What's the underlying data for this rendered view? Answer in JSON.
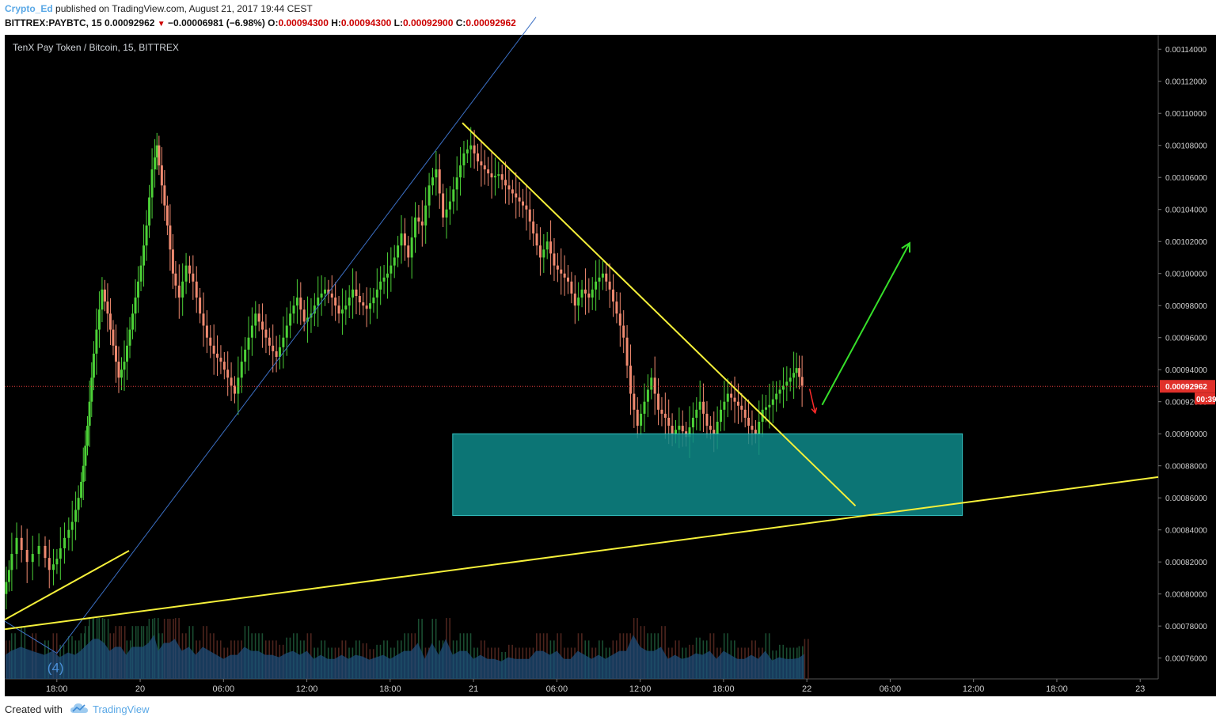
{
  "header": {
    "author": "Crypto_Ed",
    "published": " published on TradingView.com, August 21, 2017 19:44 CEST",
    "symbol": "BITTREX:PAYBTC, 15",
    "last": "0.00092962",
    "change": "−0.00006981 (−6.98%)",
    "open_label": "O:",
    "open": "0.00094300",
    "high_label": "H:",
    "high": "0.00094300",
    "low_label": "L:",
    "low": "0.00092900",
    "close_label": "C:",
    "close": "0.00092962"
  },
  "chart_title": "TenX Pay Token / Bitcoin, 15, BITTREX",
  "footer": {
    "created_with": "Created with",
    "brand": "TradingView"
  },
  "colors": {
    "background": "#000000",
    "up": "#4cd137",
    "down": "#f08a70",
    "trendline": "#f5f03a",
    "zone_fill": "#0f8a8a",
    "zone_stroke": "#3de0e0",
    "thin_line": "#3b6fc4",
    "green_arrow": "#36e02a",
    "red_arrow": "#ff2a2a",
    "price_line": "#e03c3c",
    "volume": "#1f4e7a"
  },
  "chart_data": {
    "type": "candlestick",
    "title": "TenX Pay Token / Bitcoin, 15, BITTREX",
    "x_axis_labels": [
      "18:00",
      "20",
      "06:00",
      "12:00",
      "18:00",
      "21",
      "06:00",
      "12:00",
      "18:00",
      "22",
      "06:00",
      "12:00",
      "18:00",
      "23"
    ],
    "x_axis_hours": [
      0,
      6,
      12,
      18,
      24,
      30,
      36,
      42,
      48,
      54,
      60,
      66,
      72,
      78
    ],
    "y_ticks": [
      "0.00114000",
      "0.00112000",
      "0.00110000",
      "0.00108000",
      "0.00106000",
      "0.00104000",
      "0.00102000",
      "0.00100000",
      "0.00098000",
      "0.00096000",
      "0.00094000",
      "0.00092000",
      "0.00090000",
      "0.00088000",
      "0.00086000",
      "0.00084000",
      "0.00082000",
      "0.00080000",
      "0.00078000",
      "0.00076000"
    ],
    "y_range": [
      0.000747,
      0.001149
    ],
    "x_range_hours": [
      -3.75,
      79.3
    ],
    "current_price": "0.00092962",
    "countdown": "00:39",
    "wave_label": "(4)",
    "price_path": [
      [
        -3.7,
        0.0008
      ],
      [
        -3.3,
        0.000815
      ],
      [
        -2.6,
        0.000835
      ],
      [
        -1.8,
        0.00082
      ],
      [
        -0.9,
        0.00083
      ],
      [
        -0.3,
        0.000815
      ],
      [
        0.2,
        0.000822
      ],
      [
        0.8,
        0.000835
      ],
      [
        1.3,
        0.000845
      ],
      [
        1.7,
        0.00086
      ],
      [
        2.0,
        0.00088
      ],
      [
        2.3,
        0.000905
      ],
      [
        2.6,
        0.000935
      ],
      [
        3.0,
        0.000965
      ],
      [
        3.4,
        0.00099
      ],
      [
        3.8,
        0.000975
      ],
      [
        4.2,
        0.000955
      ],
      [
        4.6,
        0.000935
      ],
      [
        5.0,
        0.000945
      ],
      [
        5.4,
        0.000965
      ],
      [
        5.8,
        0.000985
      ],
      [
        6.2,
        0.001005
      ],
      [
        6.6,
        0.00103
      ],
      [
        7.0,
        0.001065
      ],
      [
        7.3,
        0.00108
      ],
      [
        7.7,
        0.001055
      ],
      [
        8.1,
        0.00103
      ],
      [
        8.5,
        0.001
      ],
      [
        9.0,
        0.000985
      ],
      [
        9.5,
        0.001005
      ],
      [
        10.0,
        0.000995
      ],
      [
        10.5,
        0.000975
      ],
      [
        11.0,
        0.00096
      ],
      [
        11.5,
        0.00095
      ],
      [
        12.0,
        0.000945
      ],
      [
        12.5,
        0.000935
      ],
      [
        13.0,
        0.000925
      ],
      [
        13.5,
        0.000945
      ],
      [
        14.0,
        0.00096
      ],
      [
        14.5,
        0.000975
      ],
      [
        15.0,
        0.000965
      ],
      [
        15.5,
        0.000955
      ],
      [
        16.0,
        0.000948
      ],
      [
        16.5,
        0.00096
      ],
      [
        17.0,
        0.000975
      ],
      [
        17.5,
        0.000985
      ],
      [
        18.0,
        0.00097
      ],
      [
        18.5,
        0.000975
      ],
      [
        19.0,
        0.000985
      ],
      [
        19.5,
        0.00099
      ],
      [
        20.0,
        0.000985
      ],
      [
        20.5,
        0.000975
      ],
      [
        21.0,
        0.00098
      ],
      [
        21.5,
        0.00099
      ],
      [
        22.0,
        0.000982
      ],
      [
        22.5,
        0.000978
      ],
      [
        23.0,
        0.000985
      ],
      [
        23.5,
        0.000995
      ],
      [
        24.0,
        0.001
      ],
      [
        24.5,
        0.00101
      ],
      [
        25.0,
        0.001025
      ],
      [
        25.5,
        0.00101
      ],
      [
        26.0,
        0.001035
      ],
      [
        26.5,
        0.00103
      ],
      [
        27.0,
        0.001055
      ],
      [
        27.5,
        0.001065
      ],
      [
        28.0,
        0.001035
      ],
      [
        28.5,
        0.001045
      ],
      [
        29.0,
        0.00106
      ],
      [
        29.5,
        0.001075
      ],
      [
        30.0,
        0.00108
      ],
      [
        30.5,
        0.00107
      ],
      [
        31.0,
        0.001065
      ],
      [
        31.5,
        0.00106
      ],
      [
        32.0,
        0.001062
      ],
      [
        32.5,
        0.001055
      ],
      [
        33.0,
        0.00105
      ],
      [
        33.5,
        0.001045
      ],
      [
        34.0,
        0.00104
      ],
      [
        34.5,
        0.001025
      ],
      [
        35.0,
        0.00101
      ],
      [
        35.5,
        0.00102
      ],
      [
        36.0,
        0.001005
      ],
      [
        36.5,
        0.001
      ],
      [
        37.0,
        0.000995
      ],
      [
        37.5,
        0.00098
      ],
      [
        38.0,
        0.00099
      ],
      [
        38.5,
        0.000985
      ],
      [
        39.0,
        0.000995
      ],
      [
        39.5,
        0.001
      ],
      [
        40.0,
        0.00099
      ],
      [
        40.5,
        0.000975
      ],
      [
        41.0,
        0.00096
      ],
      [
        41.5,
        0.000925
      ],
      [
        42.0,
        0.000905
      ],
      [
        42.5,
        0.00092
      ],
      [
        43.0,
        0.000935
      ],
      [
        43.5,
        0.000915
      ],
      [
        44.0,
        0.00091
      ],
      [
        44.5,
        0.0009
      ],
      [
        45.0,
        0.000905
      ],
      [
        45.5,
        0.000898
      ],
      [
        46.0,
        0.00091
      ],
      [
        46.5,
        0.00092
      ],
      [
        47.0,
        0.000905
      ],
      [
        47.5,
        0.0009
      ],
      [
        48.0,
        0.000915
      ],
      [
        48.5,
        0.000925
      ],
      [
        49.0,
        0.00092
      ],
      [
        49.5,
        0.000915
      ],
      [
        50.0,
        0.000905
      ],
      [
        50.5,
        0.0009
      ],
      [
        51.0,
        0.000915
      ],
      [
        51.5,
        0.000918
      ],
      [
        52.0,
        0.000925
      ],
      [
        52.5,
        0.00093
      ],
      [
        53.0,
        0.000935
      ],
      [
        53.4,
        0.000941
      ],
      [
        53.8,
        0.00093
      ]
    ],
    "annotations": {
      "zone": {
        "hours": [
          28.5,
          65.2
        ],
        "price": [
          0.000849,
          0.0009
        ]
      },
      "trendlines": [
        {
          "from": [
            -3.75,
            0.000784
          ],
          "to": [
            5.2,
            0.000827
          ]
        },
        {
          "from": [
            -3.75,
            0.000778
          ],
          "to": [
            79.3,
            0.000873
          ]
        },
        {
          "from": [
            29.2,
            0.001094
          ],
          "to": [
            57.5,
            0.000855
          ]
        }
      ],
      "thin_line": [
        [
          -3.75,
          0.000783
        ],
        [
          0.0,
          0.000763
        ],
        [
          34.5,
          0.00116
        ]
      ],
      "green_arrow": {
        "from": [
          55.1,
          0.000918
        ],
        "to": [
          61.4,
          0.001019
        ]
      },
      "red_arrow": {
        "from": [
          54.2,
          0.000928
        ],
        "to": [
          54.6,
          0.000913
        ]
      }
    }
  }
}
